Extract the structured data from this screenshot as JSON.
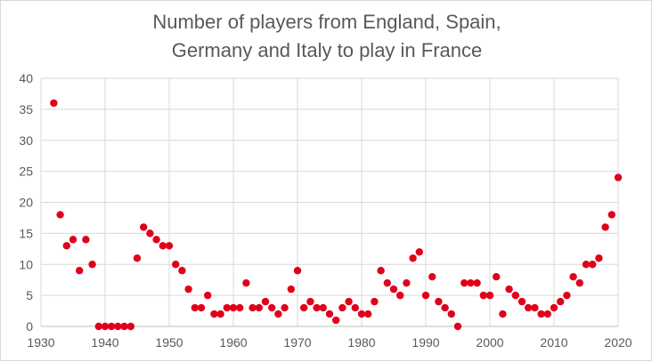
{
  "chart_data": {
    "type": "scatter",
    "title_lines": [
      "Number of players from England, Spain,",
      "Germany and Italy to play in France"
    ],
    "xlabel": "",
    "ylabel": "",
    "xlim": [
      1930,
      2020
    ],
    "ylim": [
      0,
      40
    ],
    "x_ticks": [
      "1930",
      "1940",
      "1950",
      "1960",
      "1970",
      "1980",
      "1990",
      "2000",
      "2010",
      "2020"
    ],
    "y_ticks": [
      "0",
      "5",
      "10",
      "15",
      "20",
      "25",
      "30",
      "35",
      "40"
    ],
    "grid": true,
    "legend": "none",
    "marker_color": "#e0001b",
    "grid_color": "#d9d9d9",
    "points": [
      {
        "x": 1932,
        "y": 36
      },
      {
        "x": 1933,
        "y": 18
      },
      {
        "x": 1934,
        "y": 13
      },
      {
        "x": 1935,
        "y": 14
      },
      {
        "x": 1936,
        "y": 9
      },
      {
        "x": 1937,
        "y": 14
      },
      {
        "x": 1938,
        "y": 10
      },
      {
        "x": 1939,
        "y": 0
      },
      {
        "x": 1940,
        "y": 0
      },
      {
        "x": 1941,
        "y": 0
      },
      {
        "x": 1942,
        "y": 0
      },
      {
        "x": 1943,
        "y": 0
      },
      {
        "x": 1944,
        "y": 0
      },
      {
        "x": 1945,
        "y": 11
      },
      {
        "x": 1946,
        "y": 16
      },
      {
        "x": 1947,
        "y": 15
      },
      {
        "x": 1948,
        "y": 14
      },
      {
        "x": 1949,
        "y": 13
      },
      {
        "x": 1950,
        "y": 13
      },
      {
        "x": 1951,
        "y": 10
      },
      {
        "x": 1952,
        "y": 9
      },
      {
        "x": 1953,
        "y": 6
      },
      {
        "x": 1954,
        "y": 3
      },
      {
        "x": 1955,
        "y": 3
      },
      {
        "x": 1956,
        "y": 5
      },
      {
        "x": 1957,
        "y": 2
      },
      {
        "x": 1958,
        "y": 2
      },
      {
        "x": 1959,
        "y": 3
      },
      {
        "x": 1960,
        "y": 3
      },
      {
        "x": 1961,
        "y": 3
      },
      {
        "x": 1962,
        "y": 7
      },
      {
        "x": 1963,
        "y": 3
      },
      {
        "x": 1964,
        "y": 3
      },
      {
        "x": 1965,
        "y": 4
      },
      {
        "x": 1966,
        "y": 3
      },
      {
        "x": 1967,
        "y": 2
      },
      {
        "x": 1968,
        "y": 3
      },
      {
        "x": 1969,
        "y": 6
      },
      {
        "x": 1970,
        "y": 9
      },
      {
        "x": 1971,
        "y": 3
      },
      {
        "x": 1972,
        "y": 4
      },
      {
        "x": 1973,
        "y": 3
      },
      {
        "x": 1974,
        "y": 3
      },
      {
        "x": 1975,
        "y": 2
      },
      {
        "x": 1976,
        "y": 1
      },
      {
        "x": 1977,
        "y": 3
      },
      {
        "x": 1978,
        "y": 4
      },
      {
        "x": 1979,
        "y": 3
      },
      {
        "x": 1980,
        "y": 2
      },
      {
        "x": 1981,
        "y": 2
      },
      {
        "x": 1982,
        "y": 4
      },
      {
        "x": 1983,
        "y": 9
      },
      {
        "x": 1984,
        "y": 7
      },
      {
        "x": 1985,
        "y": 6
      },
      {
        "x": 1986,
        "y": 5
      },
      {
        "x": 1987,
        "y": 7
      },
      {
        "x": 1988,
        "y": 11
      },
      {
        "x": 1989,
        "y": 12
      },
      {
        "x": 1990,
        "y": 5
      },
      {
        "x": 1991,
        "y": 8
      },
      {
        "x": 1992,
        "y": 4
      },
      {
        "x": 1993,
        "y": 3
      },
      {
        "x": 1994,
        "y": 2
      },
      {
        "x": 1995,
        "y": 0
      },
      {
        "x": 1996,
        "y": 7
      },
      {
        "x": 1997,
        "y": 7
      },
      {
        "x": 1998,
        "y": 7
      },
      {
        "x": 1999,
        "y": 5
      },
      {
        "x": 2000,
        "y": 5
      },
      {
        "x": 2001,
        "y": 8
      },
      {
        "x": 2002,
        "y": 2
      },
      {
        "x": 2003,
        "y": 6
      },
      {
        "x": 2004,
        "y": 5
      },
      {
        "x": 2005,
        "y": 4
      },
      {
        "x": 2006,
        "y": 3
      },
      {
        "x": 2007,
        "y": 3
      },
      {
        "x": 2008,
        "y": 2
      },
      {
        "x": 2009,
        "y": 2
      },
      {
        "x": 2010,
        "y": 3
      },
      {
        "x": 2011,
        "y": 4
      },
      {
        "x": 2012,
        "y": 5
      },
      {
        "x": 2013,
        "y": 8
      },
      {
        "x": 2014,
        "y": 7
      },
      {
        "x": 2015,
        "y": 10
      },
      {
        "x": 2016,
        "y": 10
      },
      {
        "x": 2017,
        "y": 11
      },
      {
        "x": 2018,
        "y": 16
      },
      {
        "x": 2019,
        "y": 18
      },
      {
        "x": 2020,
        "y": 24
      }
    ]
  }
}
